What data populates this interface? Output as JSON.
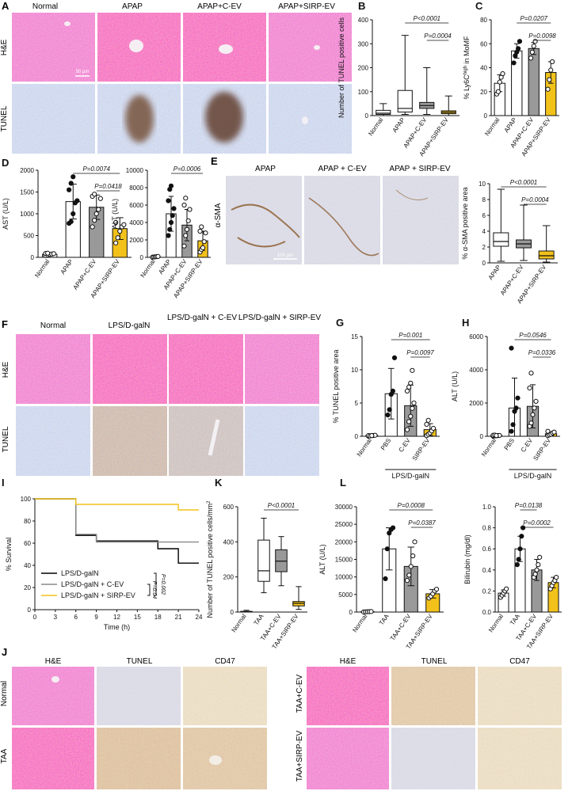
{
  "panels": {
    "A": {
      "letter": "A",
      "columns": [
        "Normal",
        "APAP",
        "APAP+C-EV",
        "APAP+SIRP-EV"
      ],
      "rows": [
        "H&E",
        "TUNEL"
      ],
      "scalebar": "50 μm"
    },
    "E": {
      "letter": "E",
      "columns": [
        "APAP",
        "APAP + C-EV",
        "APAP + SIRP-EV"
      ],
      "row": "α-SMA",
      "scalebar": "100 μm"
    },
    "F": {
      "letter": "F",
      "columns": [
        "Normal",
        "LPS/D-galN",
        "LPS/D-galN + C-EV",
        "LPS/D-galN + SIRP-EV"
      ],
      "rows": [
        "H&E",
        "TUNEL"
      ]
    },
    "J": {
      "letter": "J",
      "left_columns": [
        "H&E",
        "TUNEL",
        "CD47"
      ],
      "right_columns": [
        "H&E",
        "TUNEL",
        "CD47"
      ],
      "left_rows": [
        "Normal",
        "TAA"
      ],
      "right_rows": [
        "TAA+C-EV",
        "TAA+SIRP-EV"
      ]
    }
  },
  "chart_data": [
    {
      "id": "B",
      "letter": "B",
      "type": "box",
      "ylabel": "Number of TUNEL positive cells",
      "ylim": [
        0,
        400
      ],
      "yticks": [
        0,
        100,
        200,
        300,
        400
      ],
      "categories": [
        "Normal",
        "APAP",
        "APAP+C-EV",
        "APAP+SIRP-EV"
      ],
      "boxes": [
        {
          "min": 0,
          "q1": 5,
          "median": 10,
          "q3": 22,
          "max": 50
        },
        {
          "min": 5,
          "q1": 15,
          "median": 30,
          "q3": 105,
          "max": 335
        },
        {
          "min": 5,
          "q1": 30,
          "median": 42,
          "q3": 55,
          "max": 200
        },
        {
          "min": 0,
          "q1": 8,
          "median": 14,
          "q3": 20,
          "max": 82
        }
      ],
      "colors": [
        "#ffffff",
        "#ffffff",
        "#999999",
        "#f2c21b"
      ],
      "annotations": [
        {
          "text": "P<0.0001",
          "from": 1,
          "to": 3
        },
        {
          "text": "P=0.0004",
          "from": 2,
          "to": 3
        }
      ]
    },
    {
      "id": "C",
      "letter": "C",
      "type": "bar",
      "ylabel": "% Ly6Chigh in MoMF",
      "ylabel_main": "% Ly6C",
      "ylabel_sup": "high",
      "ylabel_tail": " in MoMF",
      "ylim": [
        0,
        80
      ],
      "yticks": [
        0,
        20,
        40,
        60,
        80
      ],
      "categories": [
        "Normal",
        "APAP",
        "APAP+C-EV",
        "APAP+SIRP-EV"
      ],
      "values": [
        27,
        54,
        56,
        36
      ],
      "errors": [
        7,
        6,
        5,
        9
      ],
      "points": [
        [
          18,
          20,
          28,
          32,
          35
        ],
        [
          44,
          50,
          53,
          56,
          62
        ],
        [
          48,
          53,
          58,
          62
        ],
        [
          22,
          30,
          38,
          45
        ]
      ],
      "colors": [
        "#ffffff",
        "#ffffff",
        "#999999",
        "#f2c21b"
      ],
      "annotations": [
        {
          "text": "P=0.0207",
          "from": 1,
          "to": 3
        },
        {
          "text": "P=0.0098",
          "from": 2,
          "to": 3
        }
      ]
    },
    {
      "id": "D1",
      "letter": "D",
      "type": "bar",
      "ylabel": "AST (U/L)",
      "ylim": [
        0,
        2000
      ],
      "yticks": [
        0,
        500,
        1000,
        1500,
        2000
      ],
      "categories": [
        "Normal",
        "APAP",
        "APAP+C-EV",
        "APAP+SIRP-EV"
      ],
      "values": [
        70,
        1280,
        1150,
        660
      ],
      "errors": [
        20,
        400,
        280,
        250
      ],
      "points": [
        [
          40,
          55,
          65,
          75,
          85,
          90,
          95
        ],
        [
          780,
          820,
          1000,
          1250,
          1300,
          1550,
          1700,
          1850
        ],
        [
          700,
          850,
          1000,
          1100,
          1350,
          1400,
          1450
        ],
        [
          330,
          450,
          600,
          700,
          750,
          800
        ]
      ],
      "colors": [
        "#ffffff",
        "#ffffff",
        "#999999",
        "#f2c21b"
      ],
      "annotations": [
        {
          "text": "P=0.0074",
          "from": 1,
          "to": 3
        },
        {
          "text": "P=0.0418",
          "from": 2,
          "to": 3
        }
      ]
    },
    {
      "id": "D2",
      "letter": "",
      "type": "bar",
      "ylabel": "ALT (U/L)",
      "ylim": [
        0,
        10000
      ],
      "yticks": [
        0,
        2000,
        4000,
        6000,
        8000,
        10000
      ],
      "categories": [
        "Normal",
        "APAP",
        "APAP+C-EV",
        "APAP+SIRP-EV"
      ],
      "values": [
        60,
        5000,
        3700,
        1900
      ],
      "errors": [
        30,
        2000,
        1800,
        1100
      ],
      "points": [
        [
          20,
          40,
          60,
          80,
          100
        ],
        [
          2500,
          3200,
          4000,
          4800,
          5600,
          6500,
          7800,
          8200
        ],
        [
          1300,
          2500,
          3200,
          4200,
          5500,
          6000,
          6800
        ],
        [
          600,
          900,
          1100,
          1800,
          2800,
          3000,
          3500
        ]
      ],
      "colors": [
        "#ffffff",
        "#ffffff",
        "#999999",
        "#f2c21b"
      ],
      "annotations": [
        {
          "text": "P=0.0006",
          "from": 1,
          "to": 3
        }
      ]
    },
    {
      "id": "E2",
      "letter": "",
      "type": "box",
      "ylabel": "% α-SMA positive area",
      "ylim": [
        0,
        10
      ],
      "yticks": [
        0,
        2,
        4,
        6,
        8,
        10
      ],
      "categories": [
        "APAP",
        "APAP+C-EV",
        "APAP+SIRP-EV"
      ],
      "boxes": [
        {
          "min": 0.2,
          "q1": 2.1,
          "median": 2.7,
          "q3": 3.8,
          "max": 9.3
        },
        {
          "min": 0.3,
          "q1": 1.9,
          "median": 2.4,
          "q3": 2.9,
          "max": 7.3
        },
        {
          "min": 0.1,
          "q1": 0.5,
          "median": 0.9,
          "q3": 1.5,
          "max": 4.7
        }
      ],
      "colors": [
        "#ffffff",
        "#999999",
        "#f2c21b"
      ],
      "annotations": [
        {
          "text": "P<0.0001",
          "from": 0,
          "to": 2
        },
        {
          "text": "P=0.0004",
          "from": 1,
          "to": 2
        }
      ]
    },
    {
      "id": "G",
      "letter": "G",
      "type": "bar",
      "ylabel": "% TUNEL positive area",
      "ylim": [
        0,
        15
      ],
      "yticks": [
        0,
        5,
        10,
        15
      ],
      "categories": [
        "Normal",
        "PBS",
        "C-EV",
        "SIRP-EV"
      ],
      "group_label": "LPS/D-galN",
      "values": [
        0.1,
        6.4,
        4.6,
        1.0
      ],
      "errors": [
        0.1,
        3.8,
        3.1,
        0.9
      ],
      "points": [
        [
          0.05,
          0.08,
          0.1,
          0.12,
          0.15,
          0.1,
          0.05,
          0.1
        ],
        [
          3.2,
          4.0,
          6.3,
          6.8,
          11.8
        ],
        [
          1.0,
          2.2,
          3.0,
          4.2,
          5.0,
          6.8,
          7.4,
          8.0,
          9.9
        ],
        [
          0.1,
          0.3,
          0.5,
          0.8,
          1.2,
          1.8,
          2.4
        ]
      ],
      "colors": [
        "#ffffff",
        "#ffffff",
        "#999999",
        "#f2c21b"
      ],
      "annotations": [
        {
          "text": "P=0.001",
          "from": 1,
          "to": 3
        },
        {
          "text": "P=0.0097",
          "from": 2,
          "to": 3
        }
      ]
    },
    {
      "id": "H",
      "letter": "H",
      "type": "bar",
      "ylabel": "ALT (U/L)",
      "ylim": [
        0,
        6000
      ],
      "yticks": [
        0,
        2000,
        4000,
        6000
      ],
      "categories": [
        "Normal",
        "PBS",
        "C-EV",
        "SIRP-EV"
      ],
      "group_label": "LPS/D-galN",
      "values": [
        40,
        1700,
        1800,
        150
      ],
      "errors": [
        20,
        1800,
        1300,
        100
      ],
      "points": [
        [
          10,
          20,
          30,
          40,
          50,
          60,
          70,
          40
        ],
        [
          300,
          700,
          1500,
          1700,
          2300,
          5300
        ],
        [
          600,
          800,
          1300,
          1700,
          2100,
          2900,
          3800
        ],
        [
          40,
          80,
          120,
          200,
          250,
          300
        ]
      ],
      "colors": [
        "#ffffff",
        "#ffffff",
        "#999999",
        "#f2c21b"
      ],
      "annotations": [
        {
          "text": "P=0.0546",
          "from": 1,
          "to": 3
        },
        {
          "text": "P=0.0336",
          "from": 2,
          "to": 3
        }
      ]
    },
    {
      "id": "I",
      "letter": "I",
      "type": "line",
      "subtype": "survival",
      "xlabel": "Time (h)",
      "ylabel": "% Survival",
      "xlim": [
        0,
        24
      ],
      "ylim": [
        0,
        100
      ],
      "xticks": [
        0,
        3,
        6,
        9,
        12,
        15,
        18,
        21,
        24
      ],
      "yticks": [
        0,
        20,
        40,
        60,
        80,
        100
      ],
      "series": [
        {
          "name": "LPS/D-galN",
          "color": "#000000",
          "steps": [
            [
              0,
              100
            ],
            [
              6,
              67
            ],
            [
              9,
              62
            ],
            [
              18,
              55
            ],
            [
              21,
              42
            ],
            [
              24,
              42
            ]
          ]
        },
        {
          "name": "LPS/D-galN + C-EV",
          "color": "#8a8a8a",
          "steps": [
            [
              0,
              100
            ],
            [
              6,
              68
            ],
            [
              9,
              61
            ],
            [
              24,
              61
            ]
          ]
        },
        {
          "name": "LPS/D-galN + SIRP-EV",
          "color": "#f2c21b",
          "steps": [
            [
              0,
              100
            ],
            [
              6,
              95
            ],
            [
              21,
              90
            ],
            [
              24,
              90
            ]
          ]
        }
      ],
      "annotations": [
        {
          "text": "P=0.002"
        },
        {
          "text": "P=0.04"
        }
      ]
    },
    {
      "id": "K",
      "letter": "K",
      "type": "box",
      "ylabel": "Number of TUNEL positive cells/mm",
      "ylabel_sup": "2",
      "ylim": [
        0,
        600
      ],
      "yticks": [
        0,
        200,
        400,
        600
      ],
      "categories": [
        "Normal",
        "TAA",
        "TAA+C-EV",
        "TAA+SIRP-EV"
      ],
      "boxes": [
        {
          "min": 0,
          "q1": 0,
          "median": 2,
          "q3": 4,
          "max": 10
        },
        {
          "min": 110,
          "q1": 175,
          "median": 235,
          "q3": 410,
          "max": 535
        },
        {
          "min": 150,
          "q1": 230,
          "median": 290,
          "q3": 355,
          "max": 430
        },
        {
          "min": 15,
          "q1": 35,
          "median": 50,
          "q3": 60,
          "max": 145
        }
      ],
      "colors": [
        "#ffffff",
        "#ffffff",
        "#999999",
        "#f2c21b"
      ],
      "annotations": [
        {
          "text": "P<0.0001",
          "from": 1,
          "to": 3
        }
      ]
    },
    {
      "id": "L1",
      "letter": "L",
      "type": "bar",
      "ylabel": "ALT (U/L)",
      "ylim": [
        0,
        30000
      ],
      "yticks": [
        0,
        5000,
        10000,
        15000,
        20000,
        25000,
        30000
      ],
      "categories": [
        "Normal",
        "TAA",
        "TAA+C-EV",
        "TAA+SIRP-EV"
      ],
      "values": [
        80,
        18000,
        13000,
        5200
      ],
      "errors": [
        40,
        6000,
        5500,
        1200
      ],
      "points": [
        [
          30,
          60,
          90,
          120,
          150
        ],
        [
          9500,
          18000,
          22500,
          23500,
          24000
        ],
        [
          9000,
          10500,
          13000,
          16000,
          20000
        ],
        [
          4000,
          4500,
          5200,
          6000,
          6500
        ]
      ],
      "colors": [
        "#ffffff",
        "#ffffff",
        "#999999",
        "#f2c21b"
      ],
      "annotations": [
        {
          "text": "P=0.0008",
          "from": 1,
          "to": 3
        },
        {
          "text": "P=0.0387",
          "from": 2,
          "to": 3
        }
      ]
    },
    {
      "id": "L2",
      "letter": "",
      "type": "bar",
      "ylabel": "Bilirubin (mg/dl)",
      "ylim": [
        0,
        1.0
      ],
      "yticks": [
        0.0,
        0.2,
        0.4,
        0.6,
        0.8,
        1.0
      ],
      "categories": [
        "Normal",
        "TAA",
        "TAA+C-EV",
        "TAA+SIRP-EV"
      ],
      "values": [
        0.18,
        0.6,
        0.4,
        0.28
      ],
      "errors": [
        0.03,
        0.12,
        0.1,
        0.05
      ],
      "points": [
        [
          0.14,
          0.16,
          0.18,
          0.2,
          0.22
        ],
        [
          0.45,
          0.5,
          0.6,
          0.72,
          0.8
        ],
        [
          0.33,
          0.36,
          0.4,
          0.45,
          0.52
        ],
        [
          0.22,
          0.25,
          0.28,
          0.3,
          0.33
        ]
      ],
      "colors": [
        "#ffffff",
        "#ffffff",
        "#999999",
        "#f2c21b"
      ],
      "annotations": [
        {
          "text": "P=0.0138",
          "from": 1,
          "to": 2
        },
        {
          "text": "P=0.0002",
          "from": 1,
          "to": 3
        }
      ]
    }
  ]
}
